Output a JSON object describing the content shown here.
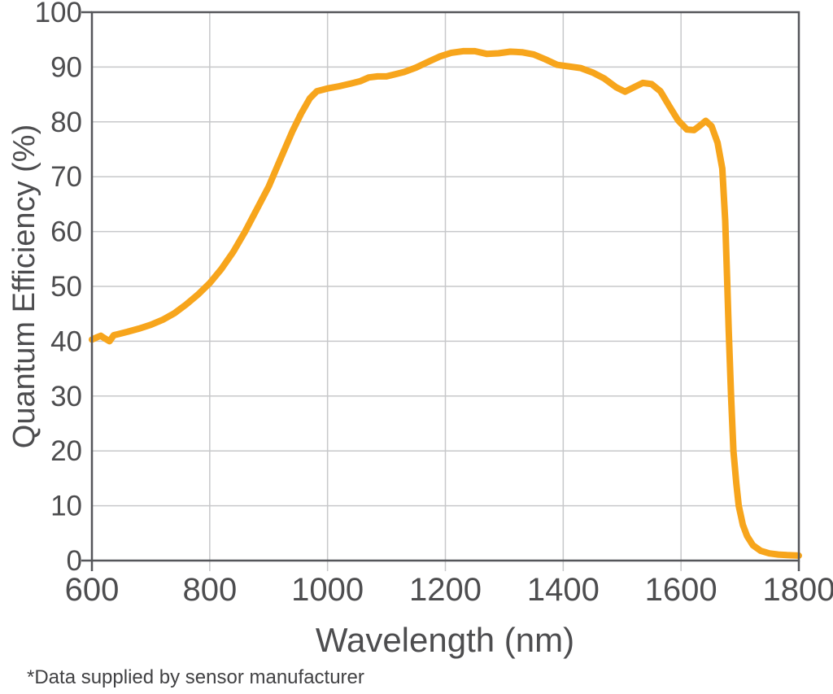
{
  "page": {
    "background": "#ffffff"
  },
  "chart_data": {
    "type": "line",
    "title": "",
    "xlabel": "Wavelength (nm)",
    "ylabel": "Quantum Efficiency (%)",
    "footnote": "*Data supplied by sensor manufacturer",
    "xlim": [
      600,
      1800
    ],
    "ylim": [
      0,
      100
    ],
    "xticks": [
      600,
      800,
      1000,
      1200,
      1400,
      1600,
      1800
    ],
    "yticks": [
      0,
      10,
      20,
      30,
      40,
      50,
      60,
      70,
      80,
      90,
      100
    ],
    "grid": true,
    "legend": false,
    "colors": {
      "line": "#F7A51C",
      "grid": "#C7C8CA",
      "axis": "#55565A",
      "text": "#4D4D4F",
      "footnote_text": "#414143",
      "background": "#FFFFFF"
    },
    "series": [
      {
        "name": "Quantum Efficiency",
        "color": "#F7A51C",
        "points": [
          [
            600,
            40.3
          ],
          [
            608,
            40.7
          ],
          [
            615,
            41.0
          ],
          [
            622,
            40.5
          ],
          [
            630,
            40.0
          ],
          [
            637,
            41.1
          ],
          [
            645,
            41.3
          ],
          [
            660,
            41.7
          ],
          [
            680,
            42.3
          ],
          [
            700,
            43.0
          ],
          [
            720,
            43.9
          ],
          [
            740,
            45.1
          ],
          [
            760,
            46.7
          ],
          [
            780,
            48.5
          ],
          [
            800,
            50.6
          ],
          [
            820,
            53.2
          ],
          [
            840,
            56.3
          ],
          [
            860,
            60.0
          ],
          [
            880,
            64.1
          ],
          [
            900,
            68.2
          ],
          [
            920,
            73.2
          ],
          [
            940,
            78.2
          ],
          [
            955,
            81.5
          ],
          [
            970,
            84.3
          ],
          [
            982,
            85.6
          ],
          [
            1000,
            86.1
          ],
          [
            1020,
            86.5
          ],
          [
            1040,
            87.0
          ],
          [
            1055,
            87.4
          ],
          [
            1070,
            88.1
          ],
          [
            1085,
            88.3
          ],
          [
            1100,
            88.3
          ],
          [
            1115,
            88.7
          ],
          [
            1130,
            89.1
          ],
          [
            1150,
            89.9
          ],
          [
            1170,
            90.9
          ],
          [
            1190,
            91.9
          ],
          [
            1210,
            92.6
          ],
          [
            1230,
            92.9
          ],
          [
            1250,
            92.9
          ],
          [
            1270,
            92.4
          ],
          [
            1290,
            92.5
          ],
          [
            1310,
            92.8
          ],
          [
            1330,
            92.7
          ],
          [
            1350,
            92.3
          ],
          [
            1370,
            91.4
          ],
          [
            1390,
            90.4
          ],
          [
            1410,
            90.1
          ],
          [
            1430,
            89.8
          ],
          [
            1450,
            89.0
          ],
          [
            1470,
            87.9
          ],
          [
            1490,
            86.3
          ],
          [
            1505,
            85.5
          ],
          [
            1520,
            86.3
          ],
          [
            1535,
            87.1
          ],
          [
            1550,
            86.9
          ],
          [
            1565,
            85.6
          ],
          [
            1580,
            82.9
          ],
          [
            1595,
            80.3
          ],
          [
            1610,
            78.6
          ],
          [
            1622,
            78.5
          ],
          [
            1632,
            79.3
          ],
          [
            1642,
            80.2
          ],
          [
            1652,
            79.2
          ],
          [
            1662,
            76.2
          ],
          [
            1670,
            71.5
          ],
          [
            1675,
            62.0
          ],
          [
            1678,
            52.0
          ],
          [
            1681,
            42.0
          ],
          [
            1685,
            30.0
          ],
          [
            1689,
            20.0
          ],
          [
            1694,
            14.0
          ],
          [
            1698,
            10.0
          ],
          [
            1705,
            6.5
          ],
          [
            1712,
            4.5
          ],
          [
            1722,
            2.8
          ],
          [
            1735,
            1.8
          ],
          [
            1750,
            1.3
          ],
          [
            1765,
            1.1
          ],
          [
            1780,
            1.0
          ],
          [
            1800,
            0.9
          ]
        ]
      }
    ]
  }
}
